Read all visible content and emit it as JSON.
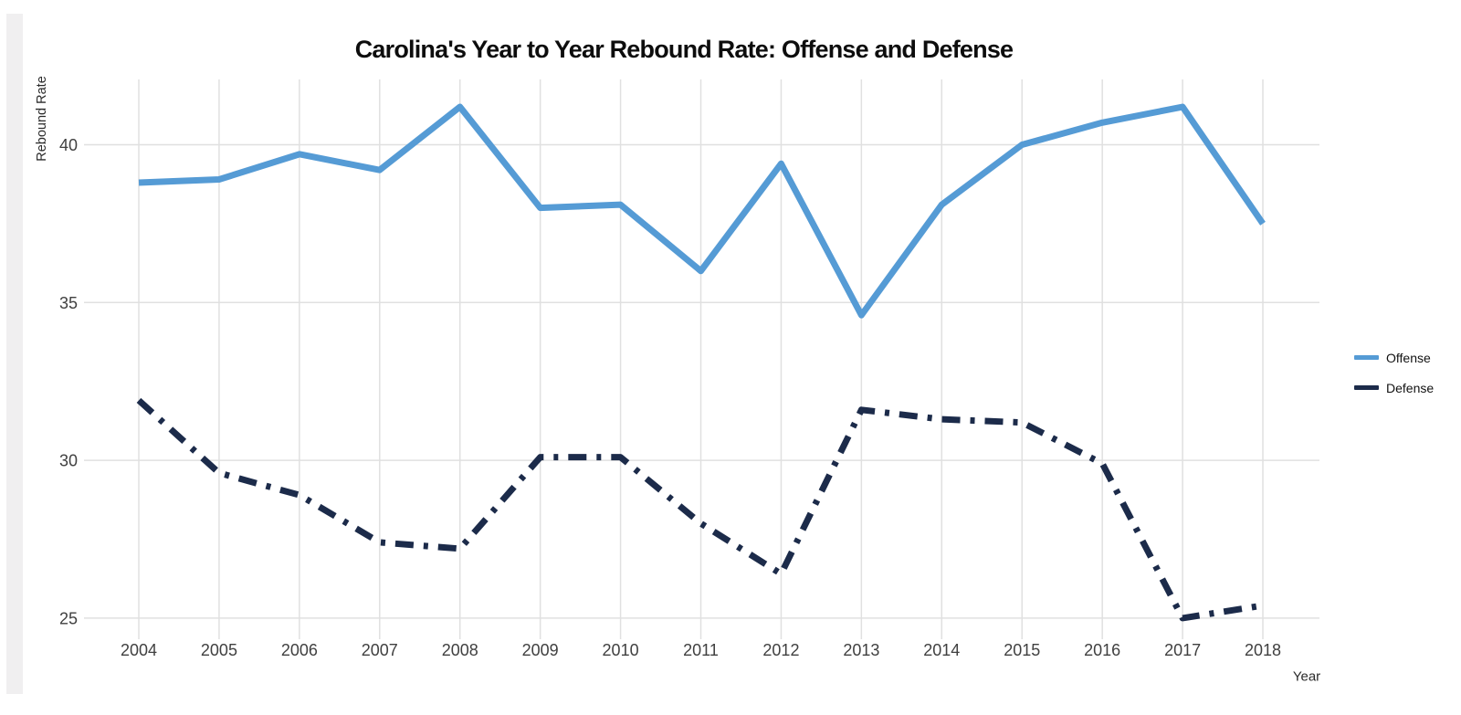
{
  "title": "Carolina's Year to Year Rebound Rate: Offense and Defense",
  "axes": {
    "y_label": "Rebound Rate",
    "x_label": "Year"
  },
  "legend": {
    "items": [
      {
        "label": "Offense",
        "color": "#559BD5",
        "line_style": "solid"
      },
      {
        "label": "Defense",
        "color": "#1C2B4A",
        "line_style": "dash-dot"
      }
    ]
  },
  "colors": {
    "offense": "#559BD5",
    "defense": "#1C2B4A",
    "gridline": "#e0e0e0",
    "tick_text": "#404040"
  },
  "chart_data": {
    "type": "line",
    "title": "Carolina's Year to Year Rebound Rate: Offense and Defense",
    "xlabel": "Year",
    "ylabel": "Rebound Rate",
    "x": [
      2004,
      2005,
      2006,
      2007,
      2008,
      2009,
      2010,
      2011,
      2012,
      2013,
      2014,
      2015,
      2016,
      2017,
      2018
    ],
    "series": [
      {
        "name": "Offense",
        "color": "#559BD5",
        "line_style": "solid",
        "values": [
          38.8,
          38.9,
          39.7,
          39.2,
          41.2,
          38.0,
          38.1,
          36.0,
          39.4,
          34.6,
          38.1,
          40.0,
          40.7,
          41.2,
          37.5
        ]
      },
      {
        "name": "Defense",
        "color": "#1C2B4A",
        "line_style": "dash-dot",
        "values": [
          31.9,
          29.6,
          28.9,
          27.4,
          27.2,
          30.1,
          30.1,
          28.0,
          26.4,
          31.6,
          31.3,
          31.2,
          29.9,
          25.0,
          25.4
        ]
      }
    ],
    "y_ticks": [
      25,
      30,
      35,
      40
    ],
    "ylim": [
      24.3,
      42.1
    ],
    "grid": true,
    "legend_position": "right"
  }
}
